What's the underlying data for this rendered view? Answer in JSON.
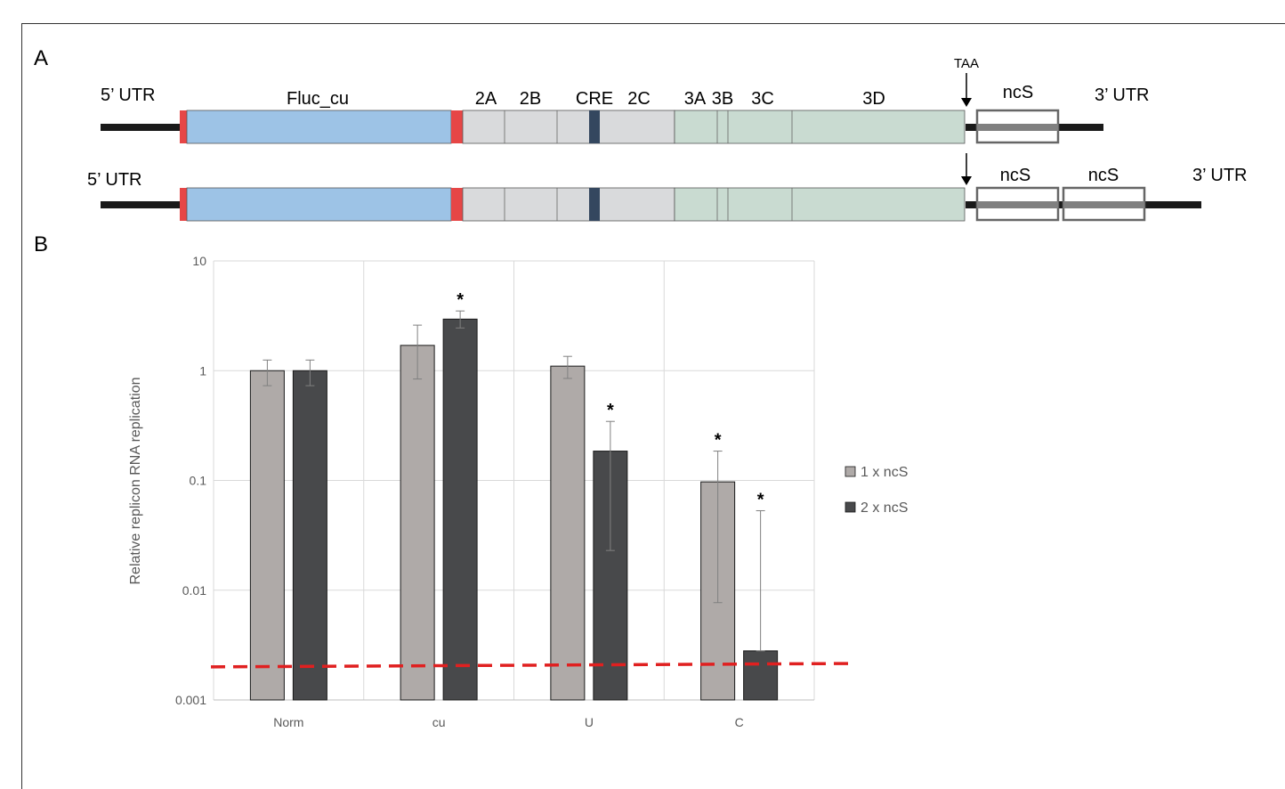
{
  "panel_a": {
    "label": "A",
    "stop_codon": "TAA",
    "constructs": [
      {
        "left_utr": "5’ UTR",
        "right_utr": "3’ UTR",
        "region_labels": [
          "Fluc_cu",
          "2A",
          "2B",
          "CRE",
          "2C",
          "3A",
          "3B",
          "3C",
          "3D"
        ],
        "inserts": [
          "ncS"
        ]
      },
      {
        "left_utr": "5’ UTR",
        "right_utr": "3’ UTR",
        "inserts": [
          "ncS",
          "ncS"
        ]
      }
    ]
  },
  "panel_b": {
    "label": "B"
  },
  "colors": {
    "fluc": "#9dc3e6",
    "p2": "#d9dadc",
    "p3": "#c9dbd1",
    "cre": "#34475f",
    "signal": "#e64646",
    "series1": "#afaaa8",
    "series2": "#48494b",
    "threshold": "#e02020"
  },
  "chart_data": {
    "type": "bar",
    "categories": [
      "Norm",
      "cu",
      "U",
      "C"
    ],
    "ylabel": "Relative replicon RNA replication",
    "yscale": "log",
    "ylim": [
      0.001,
      10
    ],
    "yticks": [
      "0.001",
      "0.01",
      "0.1",
      "1",
      "10"
    ],
    "grid": true,
    "legend_position": "right",
    "series": [
      {
        "name": "1 x ncS",
        "values": [
          1.0,
          1.7,
          1.1,
          0.097
        ],
        "error_high": [
          1.25,
          2.6,
          1.35,
          0.185
        ],
        "error_low": [
          0.73,
          0.84,
          0.85,
          0.0077
        ],
        "significant": [
          false,
          false,
          false,
          true
        ]
      },
      {
        "name": "2 x ncS",
        "values": [
          1.0,
          2.95,
          0.185,
          0.0028
        ],
        "error_high": [
          1.25,
          3.5,
          0.345,
          0.053
        ],
        "error_low": [
          0.73,
          2.45,
          0.023,
          0.0028
        ],
        "significant": [
          false,
          true,
          true,
          true
        ]
      }
    ],
    "significance_marker": "*",
    "detection_limit": [
      0.002,
      0.00215
    ]
  }
}
